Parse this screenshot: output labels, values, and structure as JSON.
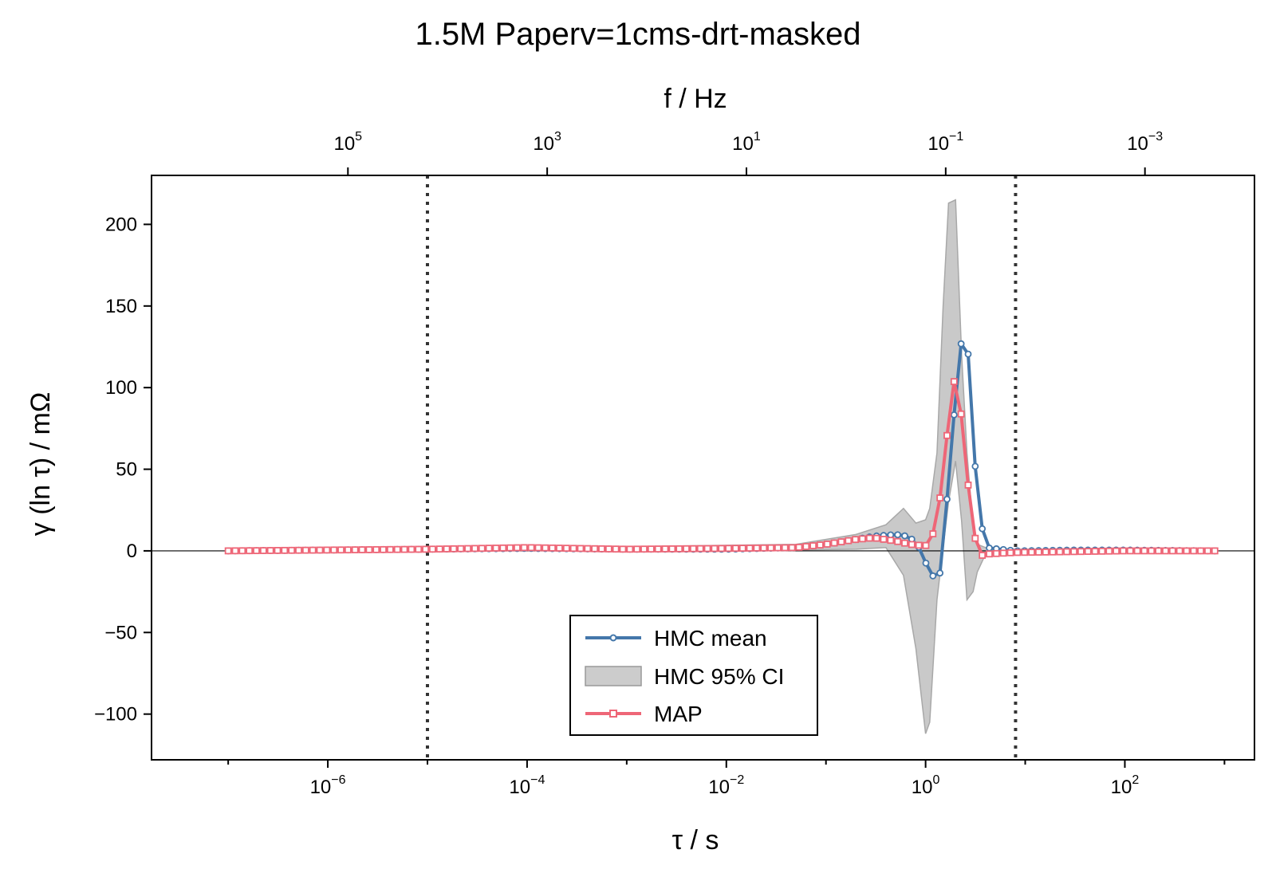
{
  "chart_data": {
    "type": "line",
    "title": "1.5M Paperv=1cms-drt-masked",
    "xlabel": "τ / s",
    "ylabel": "γ (ln τ) / mΩ",
    "x2label": "f / Hz",
    "xscale": "log",
    "xlim": [
      1.7e-08,
      2000
    ],
    "ylim": [
      -128,
      230
    ],
    "yticks": [
      -100,
      -50,
      0,
      50,
      100,
      150,
      200
    ],
    "xticks_exponents": [
      -6,
      -4,
      -2,
      0,
      2
    ],
    "x2ticks_exponents": [
      5,
      3,
      1,
      -1,
      -3
    ],
    "vlines": [
      1e-05,
      8
    ],
    "zero_line": true,
    "legend_position": "lower-center",
    "colors": {
      "hmc_mean": "#4477AA",
      "ci_fill": "#BBBBBB",
      "map": "#EE6677"
    },
    "series": [
      {
        "name": "HMC mean",
        "x": [
          1e-07,
          1e-06,
          1e-05,
          0.0001,
          0.001,
          0.01,
          0.05,
          0.1,
          0.2,
          0.3,
          0.5,
          0.6,
          0.7,
          0.8,
          0.9,
          1.0,
          1.1,
          1.3,
          1.5,
          1.7,
          2.0,
          2.3,
          2.6,
          2.9,
          3.3,
          4.0,
          8.0,
          30,
          100,
          800
        ],
        "y": [
          0,
          0.5,
          1,
          1.5,
          1,
          1,
          2,
          4,
          7,
          9,
          10,
          9.5,
          8,
          5,
          0,
          -7,
          -14,
          -17,
          -10,
          48,
          93,
          130,
          132,
          88,
          31,
          2,
          0,
          0.5,
          0.5,
          0
        ]
      },
      {
        "name": "HMC 95% CI",
        "x": [
          1e-07,
          1e-05,
          0.001,
          0.05,
          0.2,
          0.4,
          0.6,
          0.8,
          1.0,
          1.1,
          1.3,
          1.5,
          1.7,
          2.0,
          2.3,
          2.6,
          3.0,
          3.3,
          4.0,
          5.0,
          8.0,
          800
        ],
        "upper": [
          0.5,
          1.5,
          2.5,
          4,
          10,
          16,
          26,
          17,
          19,
          26,
          60,
          150,
          213,
          215,
          120,
          60,
          14,
          4,
          2,
          1,
          1,
          0.5
        ],
        "lower": [
          -0.5,
          0,
          0,
          0.5,
          1,
          2,
          -15,
          -60,
          -112,
          -105,
          -30,
          2,
          30,
          55,
          18,
          -30,
          -25,
          -13,
          -2,
          -1,
          -0.5,
          -0.5
        ]
      },
      {
        "name": "MAP",
        "x": [
          1e-07,
          1e-06,
          1e-05,
          0.0001,
          0.001,
          0.01,
          0.05,
          0.1,
          0.2,
          0.3,
          0.5,
          0.7,
          1.0,
          1.2,
          1.4,
          1.6,
          1.8,
          2.0,
          2.2,
          2.5,
          2.8,
          3.2,
          3.6,
          4.0,
          8.0,
          100,
          800
        ],
        "y": [
          0,
          0.5,
          1,
          2,
          1,
          1.5,
          2,
          4,
          7,
          8,
          6,
          4,
          3,
          11,
          33,
          64,
          95,
          108,
          92,
          60,
          27,
          5,
          -3,
          -2,
          -1,
          0,
          0
        ]
      }
    ]
  }
}
